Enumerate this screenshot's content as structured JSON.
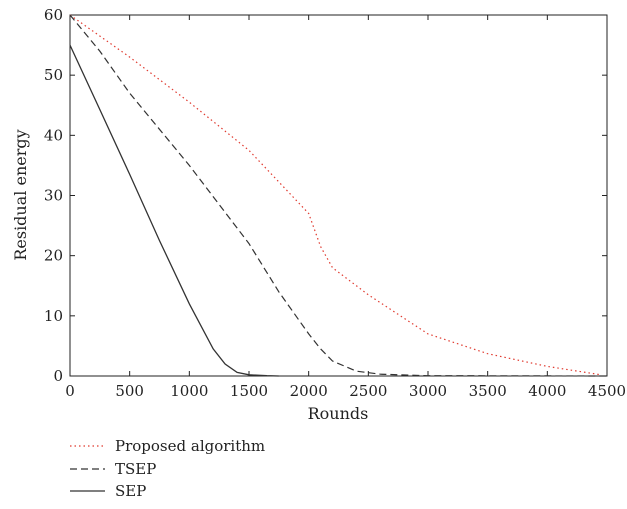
{
  "chart_data": {
    "type": "line",
    "xlabel": "Rounds",
    "ylabel": "Residual energy",
    "xlim": [
      0,
      4500
    ],
    "ylim": [
      0,
      60
    ],
    "xticks": [
      0,
      500,
      1000,
      1500,
      2000,
      2500,
      3000,
      3500,
      4000,
      4500
    ],
    "yticks": [
      0,
      10,
      20,
      30,
      40,
      50,
      60
    ],
    "xtick_labels": [
      "0",
      "500",
      "1000",
      "1500",
      "2000",
      "2500",
      "3000",
      "3500",
      "4000",
      "4500"
    ],
    "ytick_labels": [
      "0",
      "10",
      "20",
      "30",
      "40",
      "50",
      "60"
    ],
    "grid": false,
    "legend_position": "below-left",
    "series": [
      {
        "name": "Proposed algorithm",
        "color": "#e03a2f",
        "style": "dotted",
        "points": [
          [
            0,
            60
          ],
          [
            500,
            53
          ],
          [
            1000,
            45.5
          ],
          [
            1500,
            37.5
          ],
          [
            2000,
            27
          ],
          [
            2100,
            21.5
          ],
          [
            2200,
            18
          ],
          [
            2500,
            13.5
          ],
          [
            3000,
            7
          ],
          [
            3500,
            3.7
          ],
          [
            4000,
            1.6
          ],
          [
            4450,
            0.2
          ]
        ]
      },
      {
        "name": "TSEP",
        "color": "#333333",
        "style": "dashed",
        "points": [
          [
            0,
            60
          ],
          [
            250,
            54
          ],
          [
            500,
            47
          ],
          [
            1000,
            35
          ],
          [
            1500,
            22
          ],
          [
            1750,
            14
          ],
          [
            2000,
            7
          ],
          [
            2100,
            4.5
          ],
          [
            2200,
            2.5
          ],
          [
            2400,
            0.8
          ],
          [
            2600,
            0.3
          ],
          [
            3000,
            0.05
          ],
          [
            4500,
            0
          ]
        ]
      },
      {
        "name": "SEP",
        "color": "#333333",
        "style": "solid",
        "points": [
          [
            0,
            55
          ],
          [
            250,
            44.3
          ],
          [
            500,
            33.5
          ],
          [
            750,
            22.5
          ],
          [
            1000,
            12
          ],
          [
            1200,
            4.5
          ],
          [
            1300,
            2
          ],
          [
            1400,
            0.6
          ],
          [
            1500,
            0.2
          ],
          [
            1650,
            0.05
          ],
          [
            1750,
            0
          ]
        ]
      }
    ]
  }
}
